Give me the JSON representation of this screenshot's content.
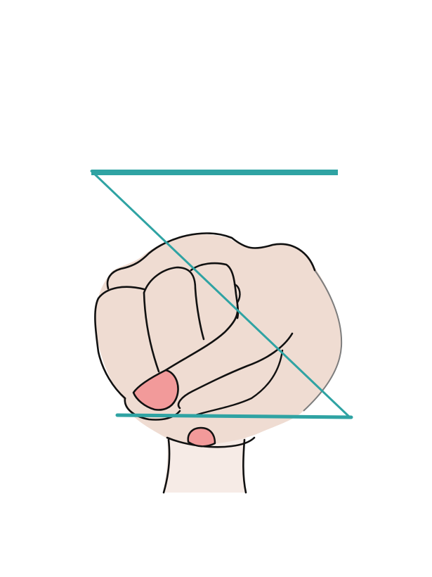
{
  "illustration": {
    "subject": "fist-with-z-stroke",
    "colors": {
      "background": "#ffffff",
      "skin": "#efdcd2",
      "skin_light": "#f6ebe6",
      "outline": "#111111",
      "nail": "#f29a9a",
      "z_stroke": "#2fa3a3"
    },
    "icons": {
      "hand": "fist-icon",
      "stroke": "z-letter-stroke"
    }
  }
}
